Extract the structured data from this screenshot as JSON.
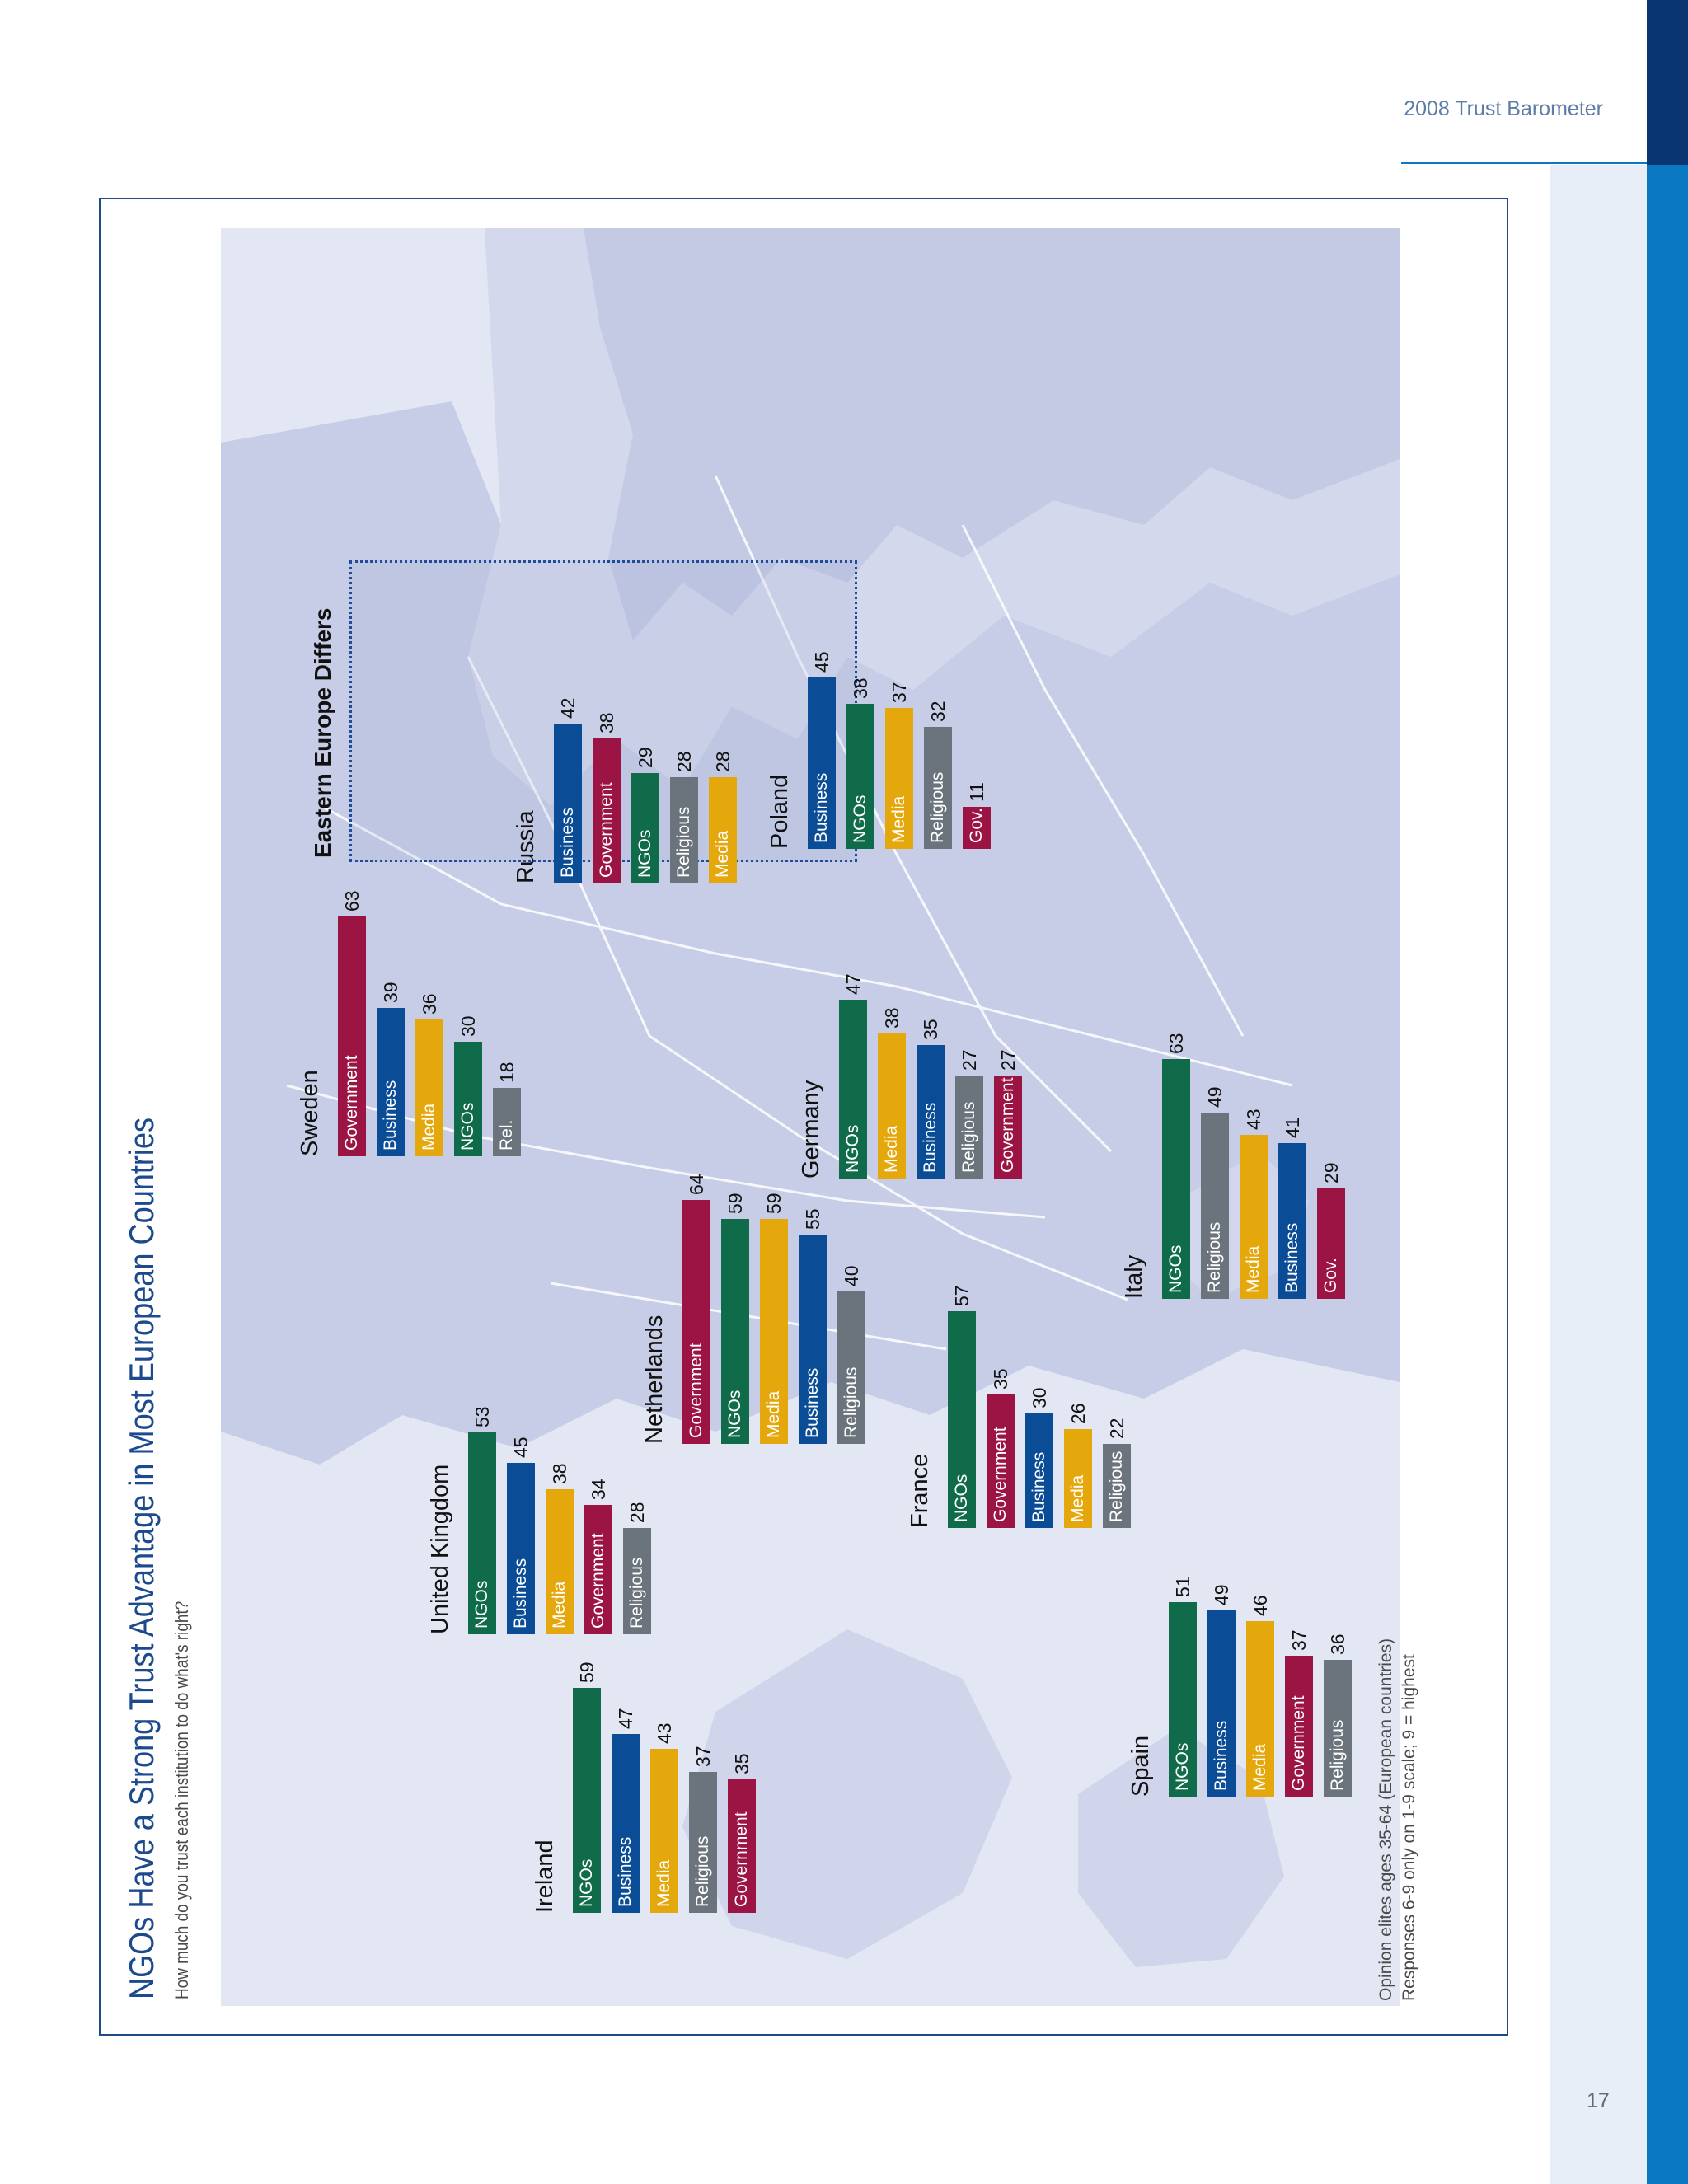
{
  "header": {
    "text": "2008 Trust Barometer"
  },
  "page_number": "17",
  "colors": {
    "NGOs": "#0f6b4a",
    "Business": "#0a4d96",
    "Media": "#e4a80c",
    "Government": "#9b1444",
    "Religious": "#6b747c",
    "frame": "#1f4b86",
    "title": "#1c4a8c",
    "accent": "#0b78c4"
  },
  "chart_data": {
    "type": "bar",
    "orientation": "horizontal",
    "title": "NGOs Have a Strong Trust Advantage in Most European Countries",
    "subtitle": "How much do you trust each institution to do what's right?",
    "footnote": [
      "Opinion elites ages 35-64 (European countries)",
      "Responses 6-9 only on 1-9 scale; 9 = highest"
    ],
    "callout": "Eastern Europe Differs",
    "groups": [
      {
        "country": "Ireland",
        "bars": [
          {
            "label": "NGOs",
            "category": "NGOs",
            "value": 59
          },
          {
            "label": "Business",
            "category": "Business",
            "value": 47
          },
          {
            "label": "Media",
            "category": "Media",
            "value": 43
          },
          {
            "label": "Religious",
            "category": "Religious",
            "value": 37
          },
          {
            "label": "Government",
            "category": "Government",
            "value": 35
          }
        ]
      },
      {
        "country": "United Kingdom",
        "bars": [
          {
            "label": "NGOs",
            "category": "NGOs",
            "value": 53
          },
          {
            "label": "Business",
            "category": "Business",
            "value": 45
          },
          {
            "label": "Media",
            "category": "Media",
            "value": 38
          },
          {
            "label": "Government",
            "category": "Government",
            "value": 34
          },
          {
            "label": "Religious",
            "category": "Religious",
            "value": 28
          }
        ]
      },
      {
        "country": "Sweden",
        "bars": [
          {
            "label": "Government",
            "category": "Government",
            "value": 63
          },
          {
            "label": "Business",
            "category": "Business",
            "value": 39
          },
          {
            "label": "Media",
            "category": "Media",
            "value": 36
          },
          {
            "label": "NGOs",
            "category": "NGOs",
            "value": 30
          },
          {
            "label": "Rel.",
            "category": "Religious",
            "value": 18
          }
        ]
      },
      {
        "country": "Netherlands",
        "bars": [
          {
            "label": "Government",
            "category": "Government",
            "value": 64
          },
          {
            "label": "NGOs",
            "category": "NGOs",
            "value": 59
          },
          {
            "label": "Media",
            "category": "Media",
            "value": 59
          },
          {
            "label": "Business",
            "category": "Business",
            "value": 55
          },
          {
            "label": "Religious",
            "category": "Religious",
            "value": 40
          }
        ]
      },
      {
        "country": "Germany",
        "bars": [
          {
            "label": "NGOs",
            "category": "NGOs",
            "value": 47
          },
          {
            "label": "Media",
            "category": "Media",
            "value": 38
          },
          {
            "label": "Business",
            "category": "Business",
            "value": 35
          },
          {
            "label": "Religious",
            "category": "Religious",
            "value": 27
          },
          {
            "label": "Government",
            "category": "Government",
            "value": 27
          }
        ]
      },
      {
        "country": "France",
        "bars": [
          {
            "label": "NGOs",
            "category": "NGOs",
            "value": 57
          },
          {
            "label": "Government",
            "category": "Government",
            "value": 35
          },
          {
            "label": "Business",
            "category": "Business",
            "value": 30
          },
          {
            "label": "Media",
            "category": "Media",
            "value": 26
          },
          {
            "label": "Religious",
            "category": "Religious",
            "value": 22
          }
        ]
      },
      {
        "country": "Spain",
        "bars": [
          {
            "label": "NGOs",
            "category": "NGOs",
            "value": 51
          },
          {
            "label": "Business",
            "category": "Business",
            "value": 49
          },
          {
            "label": "Media",
            "category": "Media",
            "value": 46
          },
          {
            "label": "Government",
            "category": "Government",
            "value": 37
          },
          {
            "label": "Religious",
            "category": "Religious",
            "value": 36
          }
        ]
      },
      {
        "country": "Italy",
        "bars": [
          {
            "label": "NGOs",
            "category": "NGOs",
            "value": 63
          },
          {
            "label": "Religious",
            "category": "Religious",
            "value": 49
          },
          {
            "label": "Media",
            "category": "Media",
            "value": 43
          },
          {
            "label": "Business",
            "category": "Business",
            "value": 41
          },
          {
            "label": "Gov.",
            "category": "Government",
            "value": 29
          }
        ]
      },
      {
        "country": "Russia",
        "bars": [
          {
            "label": "Business",
            "category": "Business",
            "value": 42
          },
          {
            "label": "Government",
            "category": "Government",
            "value": 38
          },
          {
            "label": "NGOs",
            "category": "NGOs",
            "value": 29
          },
          {
            "label": "Religious",
            "category": "Religious",
            "value": 28
          },
          {
            "label": "Media",
            "category": "Media",
            "value": 28
          }
        ]
      },
      {
        "country": "Poland",
        "bars": [
          {
            "label": "Business",
            "category": "Business",
            "value": 45
          },
          {
            "label": "NGOs",
            "category": "NGOs",
            "value": 38
          },
          {
            "label": "Media",
            "category": "Media",
            "value": 37
          },
          {
            "label": "Religious",
            "category": "Religious",
            "value": 32
          },
          {
            "label": "Gov.",
            "category": "Government",
            "value": 11
          }
        ]
      }
    ]
  }
}
